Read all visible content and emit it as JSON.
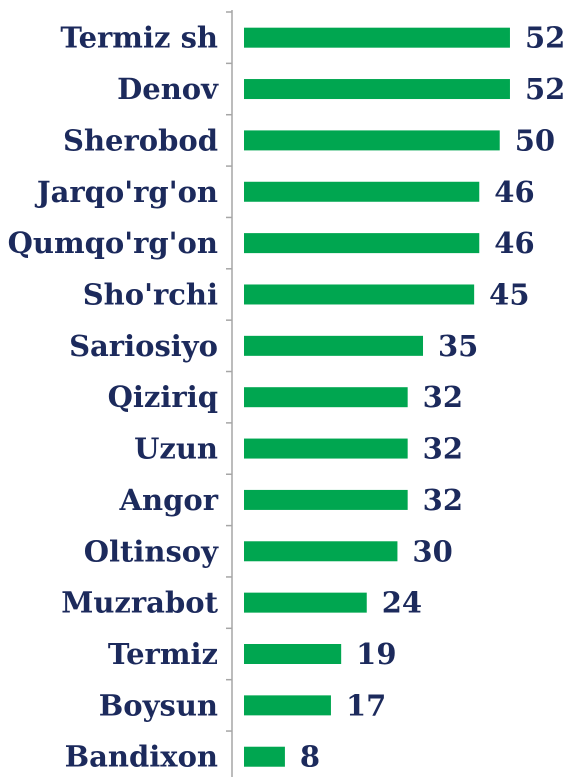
{
  "chart_data": {
    "type": "barh",
    "categories": [
      "Termiz sh",
      "Denov",
      "Sherobod",
      "Jarqo'rg'on",
      "Qumqo'rg'on",
      "Sho'rchi",
      "Sariosiyo",
      "Qiziriq",
      "Uzun",
      "Angor",
      "Oltinsoy",
      "Muzrabot",
      "Termiz",
      "Boysun",
      "Bandixon"
    ],
    "values": [
      52,
      52,
      50,
      46,
      46,
      45,
      35,
      32,
      32,
      32,
      30,
      24,
      19,
      17,
      8
    ],
    "color": "#00a650",
    "xlim": [
      0,
      55
    ]
  }
}
